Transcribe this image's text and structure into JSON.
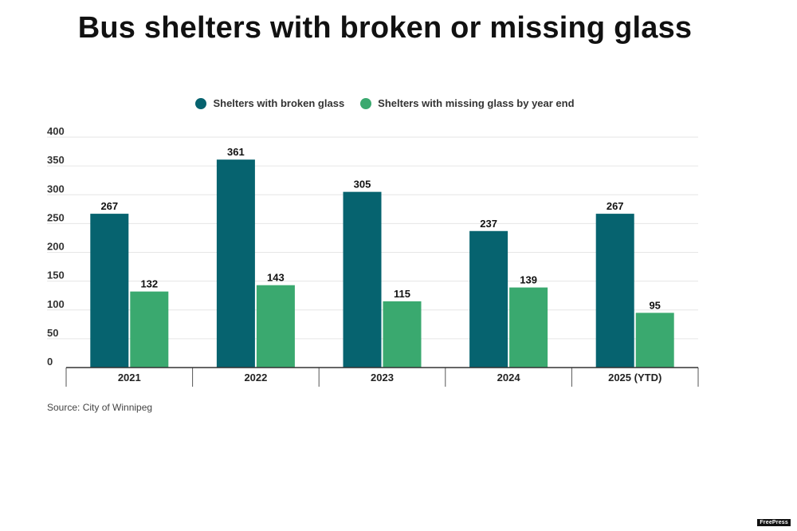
{
  "title": "Bus shelters with broken or missing glass",
  "source": "Source: City of Winnipeg",
  "brand": "FreePress",
  "colors": {
    "broken": "#06636f",
    "missing": "#3aa96f",
    "grid": "#e6e6e6",
    "axis": "#333333"
  },
  "chart_data": {
    "type": "bar",
    "title": "Bus shelters with broken or missing glass",
    "xlabel": "",
    "ylabel": "",
    "categories": [
      "2021",
      "2022",
      "2023",
      "2024",
      "2025 (YTD)"
    ],
    "series": [
      {
        "name": "Shelters with broken glass",
        "values": [
          267,
          361,
          305,
          237,
          267
        ]
      },
      {
        "name": "Shelters with missing glass by year end",
        "values": [
          132,
          143,
          115,
          139,
          95
        ]
      }
    ],
    "ylim": [
      0,
      400
    ],
    "yticks": [
      "0",
      "50",
      "100",
      "150",
      "200",
      "250",
      "300",
      "350",
      "400"
    ],
    "legend": "top-center",
    "grid": true
  }
}
